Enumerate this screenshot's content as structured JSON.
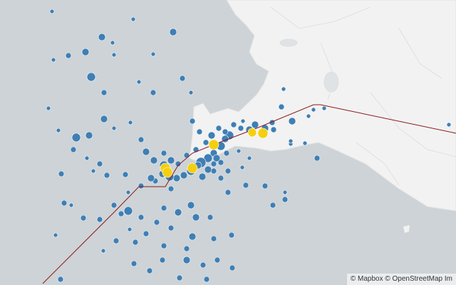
{
  "map": {
    "colors": {
      "water": "#cdd3d6",
      "land": "#f2f2f2",
      "quake": "#3f7fb5",
      "quake_large": "#f5cf0f",
      "plate_boundary": "#8b1a1a"
    }
  },
  "attribution": {
    "mapbox": "© Mapbox",
    "osm": "© OpenStreetMap",
    "improve": "Im"
  }
}
